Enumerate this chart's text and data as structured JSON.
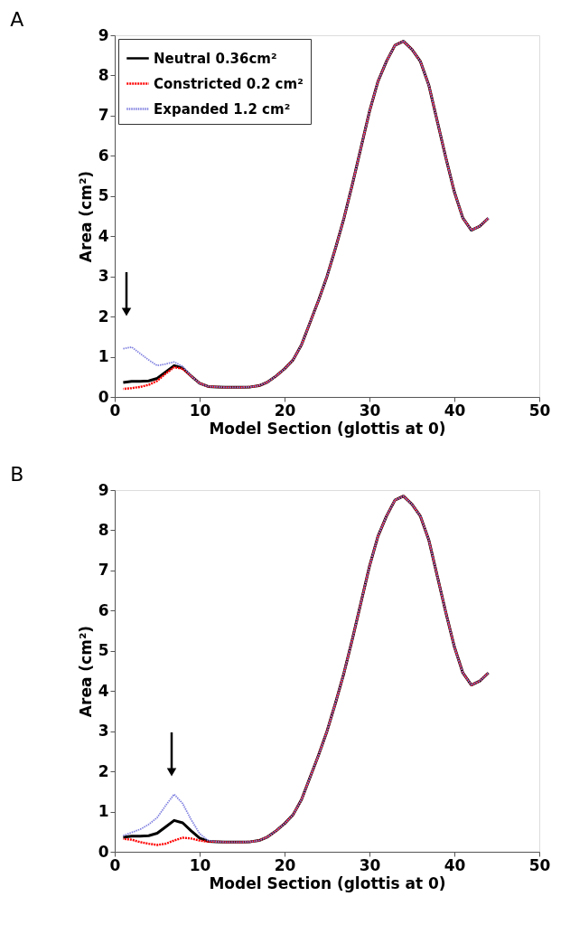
{
  "chart_data": [
    {
      "type": "line",
      "title": "A",
      "xlabel": "Model Section (glottis at 0)",
      "ylabel": "Area (cm²)",
      "x": [
        1,
        2,
        3,
        4,
        5,
        6,
        7,
        8,
        9,
        10,
        11,
        12,
        13,
        14,
        15,
        16,
        17,
        18,
        19,
        20,
        21,
        22,
        23,
        24,
        25,
        26,
        27,
        28,
        29,
        30,
        31,
        32,
        33,
        34,
        35,
        36,
        37,
        38,
        39,
        40,
        41,
        42,
        43,
        44
      ],
      "xlim": [
        0,
        50
      ],
      "xticks": [
        0,
        10,
        20,
        30,
        40,
        50
      ],
      "ylim": [
        0,
        9
      ],
      "yticks": [
        0,
        1,
        2,
        3,
        4,
        5,
        6,
        7,
        8,
        9
      ],
      "grid": false,
      "legend": "top left",
      "marker": "none",
      "series": [
        {
          "name": "Neutral 0.36cm²",
          "color": "#000000",
          "line_style": "solid",
          "values": [
            0.36,
            0.39,
            0.39,
            0.4,
            0.46,
            0.62,
            0.78,
            0.72,
            0.52,
            0.34,
            0.26,
            0.25,
            0.24,
            0.24,
            0.24,
            0.25,
            0.28,
            0.37,
            0.52,
            0.7,
            0.92,
            1.3,
            1.85,
            2.4,
            3.0,
            3.7,
            4.45,
            5.3,
            6.2,
            7.1,
            7.85,
            8.35,
            8.75,
            8.85,
            8.65,
            8.35,
            7.75,
            6.85,
            5.95,
            5.1,
            4.45,
            4.15,
            4.25,
            4.45
          ]
        },
        {
          "name": "Constricted 0.2 cm²",
          "color": "#ff0000",
          "line_style": "dashed",
          "values": [
            0.2,
            0.22,
            0.25,
            0.3,
            0.4,
            0.58,
            0.74,
            0.7,
            0.52,
            0.34,
            0.26,
            0.25,
            0.24,
            0.24,
            0.24,
            0.25,
            0.28,
            0.37,
            0.52,
            0.7,
            0.92,
            1.3,
            1.85,
            2.4,
            3.0,
            3.7,
            4.45,
            5.3,
            6.2,
            7.1,
            7.85,
            8.35,
            8.75,
            8.85,
            8.65,
            8.35,
            7.75,
            6.85,
            5.95,
            5.1,
            4.45,
            4.15,
            4.25,
            4.45
          ]
        },
        {
          "name": "Expanded 1.2 cm²",
          "color": "#8080e0",
          "line_style": "dotted",
          "values": [
            1.2,
            1.24,
            1.08,
            0.92,
            0.78,
            0.82,
            0.87,
            0.76,
            0.52,
            0.34,
            0.26,
            0.25,
            0.24,
            0.24,
            0.24,
            0.25,
            0.28,
            0.37,
            0.52,
            0.7,
            0.92,
            1.3,
            1.85,
            2.4,
            3.0,
            3.7,
            4.45,
            5.3,
            6.2,
            7.1,
            7.85,
            8.35,
            8.75,
            8.85,
            8.65,
            8.35,
            7.75,
            6.85,
            5.95,
            5.1,
            4.45,
            4.15,
            4.25,
            4.45
          ]
        }
      ]
    },
    {
      "type": "line",
      "title": "B",
      "xlabel": "Model Section (glottis at 0)",
      "ylabel": "Area (cm²)",
      "x": [
        1,
        2,
        3,
        4,
        5,
        6,
        7,
        8,
        9,
        10,
        11,
        12,
        13,
        14,
        15,
        16,
        17,
        18,
        19,
        20,
        21,
        22,
        23,
        24,
        25,
        26,
        27,
        28,
        29,
        30,
        31,
        32,
        33,
        34,
        35,
        36,
        37,
        38,
        39,
        40,
        41,
        42,
        43,
        44
      ],
      "xlim": [
        0,
        50
      ],
      "xticks": [
        0,
        10,
        20,
        30,
        40,
        50
      ],
      "ylim": [
        0,
        9
      ],
      "yticks": [
        0,
        1,
        2,
        3,
        4,
        5,
        6,
        7,
        8,
        9
      ],
      "grid": false,
      "legend": "top left",
      "marker": "none",
      "series": [
        {
          "name": "Neutral 0.36cm²",
          "color": "#000000",
          "line_style": "solid",
          "values": [
            0.36,
            0.39,
            0.39,
            0.4,
            0.46,
            0.62,
            0.78,
            0.72,
            0.52,
            0.34,
            0.26,
            0.25,
            0.24,
            0.24,
            0.24,
            0.25,
            0.28,
            0.37,
            0.52,
            0.7,
            0.92,
            1.3,
            1.85,
            2.4,
            3.0,
            3.7,
            4.45,
            5.3,
            6.2,
            7.1,
            7.85,
            8.35,
            8.75,
            8.85,
            8.65,
            8.35,
            7.75,
            6.85,
            5.95,
            5.1,
            4.45,
            4.15,
            4.25,
            4.45
          ]
        },
        {
          "name": "Constricted 0.2 cm²",
          "color": "#ff0000",
          "line_style": "dashed",
          "values": [
            0.32,
            0.3,
            0.24,
            0.2,
            0.17,
            0.2,
            0.28,
            0.35,
            0.33,
            0.28,
            0.25,
            0.25,
            0.24,
            0.24,
            0.24,
            0.25,
            0.28,
            0.37,
            0.52,
            0.7,
            0.92,
            1.3,
            1.85,
            2.4,
            3.0,
            3.7,
            4.45,
            5.3,
            6.2,
            7.1,
            7.85,
            8.35,
            8.75,
            8.85,
            8.65,
            8.35,
            7.75,
            6.85,
            5.95,
            5.1,
            4.45,
            4.15,
            4.25,
            4.45
          ]
        },
        {
          "name": "Expanded 1.2 cm²",
          "color": "#8080e0",
          "line_style": "dotted",
          "values": [
            0.4,
            0.48,
            0.56,
            0.68,
            0.85,
            1.15,
            1.43,
            1.2,
            0.8,
            0.45,
            0.28,
            0.25,
            0.24,
            0.24,
            0.24,
            0.25,
            0.28,
            0.37,
            0.52,
            0.7,
            0.92,
            1.3,
            1.85,
            2.4,
            3.0,
            3.7,
            4.45,
            5.3,
            6.2,
            7.1,
            7.85,
            8.35,
            8.75,
            8.85,
            8.65,
            8.35,
            7.75,
            6.85,
            5.95,
            5.1,
            4.45,
            4.15,
            4.25,
            4.45
          ]
        }
      ]
    }
  ]
}
